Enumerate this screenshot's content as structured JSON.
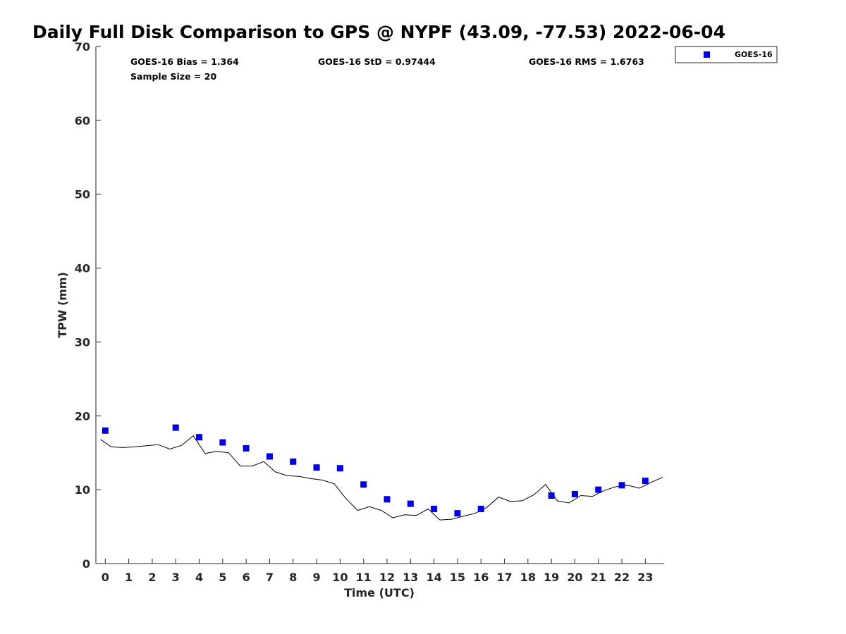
{
  "chart_data": {
    "type": "scatter",
    "title": "Daily Full Disk Comparison to GPS @ NYPF (43.09, -77.53) 2022-06-04",
    "xlabel": "Time (UTC)",
    "ylabel": "TPW (mm)",
    "xlim": [
      -0.4,
      23.8
    ],
    "ylim": [
      0,
      70
    ],
    "x_ticks": [
      "0",
      "1",
      "2",
      "3",
      "4",
      "5",
      "6",
      "7",
      "8",
      "9",
      "10",
      "11",
      "12",
      "13",
      "14",
      "15",
      "16",
      "17",
      "18",
      "19",
      "20",
      "21",
      "22",
      "23"
    ],
    "y_ticks": [
      "0",
      "10",
      "20",
      "30",
      "40",
      "50",
      "60",
      "70"
    ],
    "stats": {
      "bias": "GOES-16 Bias = 1.364",
      "std": "GOES-16 StD = 0.97444",
      "rms": "GOES-16 RMS = 1.6763",
      "sample": "Sample Size = 20"
    },
    "legend": {
      "label": "GOES-16",
      "position": "top-right-outside"
    },
    "colors": {
      "goes": "#0000e0",
      "gps": "#000000"
    },
    "series": [
      {
        "name": "GOES-16",
        "kind": "points",
        "x": [
          0,
          3,
          4,
          5,
          6,
          7,
          8,
          9,
          10,
          11,
          12,
          13,
          14,
          15,
          16,
          19,
          20,
          21,
          22,
          23
        ],
        "y": [
          18.0,
          18.4,
          17.1,
          16.4,
          15.6,
          14.5,
          13.8,
          13.0,
          12.9,
          10.7,
          8.7,
          8.1,
          7.4,
          6.8,
          7.4,
          9.2,
          9.4,
          10.0,
          10.6,
          11.2
        ]
      },
      {
        "kind": "line",
        "x": [
          -0.2,
          0.25,
          0.75,
          1.25,
          1.75,
          2.25,
          2.75,
          3.25,
          3.75,
          4.25,
          4.75,
          5.25,
          5.75,
          6.25,
          6.75,
          7.25,
          7.75,
          8.25,
          8.75,
          9.25,
          9.75,
          10.25,
          10.75,
          11.25,
          11.75,
          12.25,
          12.75,
          13.25,
          13.75,
          14.25,
          14.75,
          15.25,
          15.75,
          16.25,
          16.75,
          17.25,
          17.75,
          18.25,
          18.75,
          19.25,
          19.75,
          20.25,
          20.75,
          21.25,
          21.75,
          22.25,
          22.75,
          23.25,
          23.75
        ],
        "y": [
          16.8,
          15.8,
          15.7,
          15.8,
          15.95,
          16.1,
          15.5,
          16.0,
          17.3,
          14.9,
          15.2,
          15.0,
          13.2,
          13.2,
          13.8,
          12.4,
          11.9,
          11.8,
          11.5,
          11.3,
          10.8,
          8.8,
          7.2,
          7.7,
          7.2,
          6.2,
          6.6,
          6.5,
          7.4,
          5.9,
          6.0,
          6.4,
          6.8,
          7.6,
          9.0,
          8.4,
          8.5,
          9.3,
          10.7,
          8.5,
          8.2,
          9.2,
          9.1,
          9.9,
          10.4,
          10.6,
          10.2,
          11.0,
          11.7
        ]
      }
    ]
  }
}
